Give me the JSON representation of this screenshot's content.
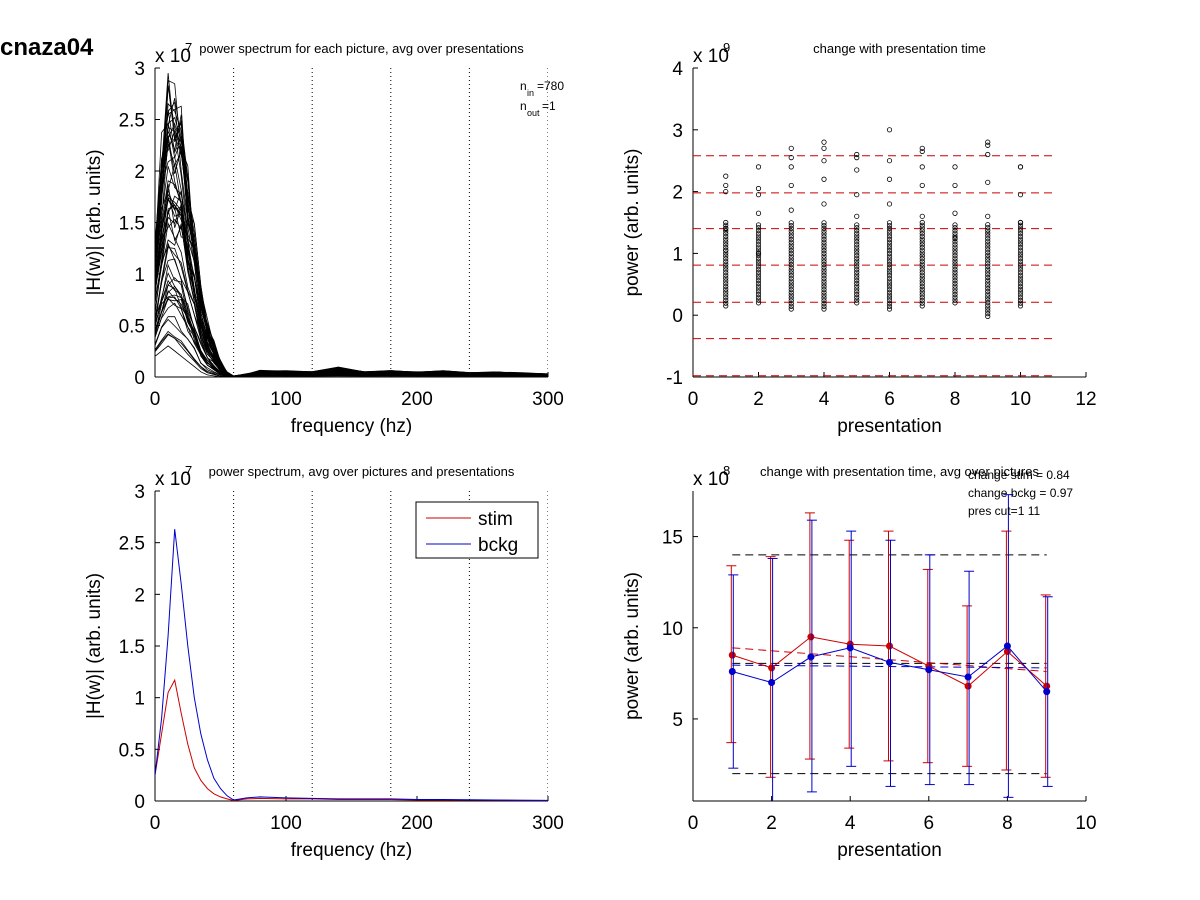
{
  "figure_title": "cnaza04",
  "chart_data": [
    {
      "type": "line",
      "title": "power spectrum for each picture, avg over presentations",
      "xlabel": "frequency (hz)",
      "ylabel": "|H(w)| (arb. units)",
      "xlim": [
        0,
        300
      ],
      "ylim": [
        0,
        3
      ],
      "xticks": [
        "0",
        "100",
        "200",
        "300"
      ],
      "yticks": [
        "0",
        "0.5",
        "1",
        "1.5",
        "2",
        "2.5",
        "3"
      ],
      "y_exponent": "x 10",
      "y_exponent_power": "7",
      "vlines": [
        60,
        120,
        180,
        240,
        300
      ],
      "annotations": [
        {
          "base": "n",
          "sub": "in",
          "rest": "=780"
        },
        {
          "base": "n",
          "sub": "out",
          "rest": "=1"
        }
      ],
      "envelope": {
        "x": [
          0,
          5,
          10,
          15,
          20,
          25,
          30,
          35,
          40,
          45,
          50,
          55,
          60,
          70,
          80,
          100,
          120,
          140,
          160,
          180,
          200,
          220,
          240,
          260,
          280,
          300
        ],
        "upper": [
          1.3,
          2.2,
          2.85,
          2.8,
          2.6,
          2.0,
          1.5,
          0.9,
          0.55,
          0.35,
          0.15,
          0.05,
          0.01,
          0.03,
          0.06,
          0.06,
          0.05,
          0.09,
          0.05,
          0.06,
          0.05,
          0.06,
          0.04,
          0.05,
          0.04,
          0.03
        ],
        "lower": [
          0.2,
          0.25,
          0.3,
          0.25,
          0.2,
          0.15,
          0.1,
          0.05,
          0.02,
          0.01,
          0.0,
          0.0,
          0.0,
          0.01,
          0.01,
          0.01,
          0.01,
          0.01,
          0.01,
          0.01,
          0.01,
          0.01,
          0.01,
          0.01,
          0.01,
          0.01
        ]
      },
      "n_traces": 60,
      "line_color": "#000000"
    },
    {
      "type": "scatter",
      "title": "change with presentation time",
      "xlabel": "presentation",
      "ylabel": "power (arb. units)",
      "xlim": [
        0,
        12
      ],
      "ylim": [
        -1,
        4
      ],
      "xticks": [
        "0",
        "2",
        "4",
        "6",
        "8",
        "10",
        "12"
      ],
      "yticks": [
        "-1",
        "0",
        "1",
        "2",
        "3",
        "4"
      ],
      "y_exponent": "x 10",
      "y_exponent_power": "9",
      "hlines_red": [
        2.58,
        1.98,
        1.4,
        0.81,
        0.21,
        -0.38,
        -0.98
      ],
      "hline_xrange": [
        0,
        11
      ],
      "points": [
        {
          "x": 1,
          "ymin": 0.15,
          "ymax": 2.25,
          "outliers": [
            1.05,
            1.4,
            2.0,
            2.1
          ]
        },
        {
          "x": 2,
          "ymin": 0.2,
          "ymax": 2.4,
          "outliers": [
            1.0,
            1.65,
            1.95,
            2.05
          ]
        },
        {
          "x": 3,
          "ymin": 0.1,
          "ymax": 2.7,
          "outliers": [
            1.7,
            2.1,
            2.4,
            2.55
          ]
        },
        {
          "x": 4,
          "ymin": 0.1,
          "ymax": 2.8,
          "outliers": [
            1.8,
            2.2,
            2.5,
            2.7
          ]
        },
        {
          "x": 5,
          "ymin": 0.2,
          "ymax": 2.6,
          "outliers": [
            1.6,
            1.95,
            2.35,
            2.55
          ]
        },
        {
          "x": 6,
          "ymin": 0.1,
          "ymax": 3.0,
          "outliers": [
            1.8,
            2.2,
            2.5
          ]
        },
        {
          "x": 7,
          "ymin": 0.15,
          "ymax": 2.7,
          "outliers": [
            1.6,
            2.1,
            2.4,
            2.65
          ]
        },
        {
          "x": 8,
          "ymin": 0.2,
          "ymax": 2.4,
          "outliers": [
            1.25,
            1.65,
            2.1
          ]
        },
        {
          "x": 9,
          "ymin": -0.02,
          "ymax": 2.8,
          "outliers": [
            1.6,
            2.15,
            2.6,
            2.75
          ]
        },
        {
          "x": 10,
          "ymin": 0.15,
          "ymax": 2.4,
          "outliers": [
            1.5,
            1.95,
            2.4
          ]
        }
      ]
    },
    {
      "type": "line",
      "title": "power spectrum, avg over pictures and presentations",
      "xlabel": "frequency (hz)",
      "ylabel": "|H(w)| (arb. units)",
      "xlim": [
        0,
        300
      ],
      "ylim": [
        0,
        3
      ],
      "xticks": [
        "0",
        "100",
        "200",
        "300"
      ],
      "yticks": [
        "0",
        "0.5",
        "1",
        "1.5",
        "2",
        "2.5",
        "3"
      ],
      "y_exponent": "x 10",
      "y_exponent_power": "7",
      "vlines": [
        60,
        120,
        180,
        240,
        300
      ],
      "legend": "top-right",
      "series": [
        {
          "name": "stim",
          "color": "#cc0000",
          "x": [
            0,
            5,
            10,
            15,
            20,
            25,
            30,
            35,
            40,
            45,
            50,
            55,
            60,
            70,
            80,
            100,
            120,
            140,
            160,
            180,
            200,
            220,
            240,
            260,
            280,
            300
          ],
          "y": [
            0.25,
            0.65,
            1.05,
            1.17,
            0.85,
            0.55,
            0.32,
            0.2,
            0.12,
            0.07,
            0.04,
            0.02,
            0.005,
            0.02,
            0.025,
            0.02,
            0.02,
            0.015,
            0.015,
            0.015,
            0.01,
            0.01,
            0.01,
            0.008,
            0.006,
            0.005
          ]
        },
        {
          "name": "bckg",
          "color": "#0000cc",
          "x": [
            0,
            5,
            10,
            15,
            20,
            25,
            30,
            35,
            40,
            45,
            50,
            55,
            60,
            70,
            80,
            100,
            120,
            140,
            160,
            180,
            200,
            220,
            240,
            260,
            280,
            300
          ],
          "y": [
            0.25,
            0.8,
            1.6,
            2.63,
            2.1,
            1.5,
            1.0,
            0.65,
            0.4,
            0.22,
            0.12,
            0.05,
            0.01,
            0.03,
            0.04,
            0.03,
            0.025,
            0.02,
            0.02,
            0.02,
            0.015,
            0.015,
            0.012,
            0.01,
            0.008,
            0.006
          ]
        }
      ]
    },
    {
      "type": "line",
      "title": "change with presentation time, avg over pictures",
      "xlabel": "presentation",
      "ylabel": "power (arb. units)",
      "xlim": [
        0,
        10
      ],
      "ylim": [
        0.5,
        17.5
      ],
      "xticks": [
        "0",
        "2",
        "4",
        "6",
        "8",
        "10"
      ],
      "ytick_values": [
        5,
        10,
        15
      ],
      "yticks": [
        "5",
        "10",
        "15"
      ],
      "y_exponent": "x 10",
      "y_exponent_power": "8",
      "annotations": [
        "change stim = 0.84",
        "change bckg = 0.97",
        "pres cut=1 11"
      ],
      "hlines_black": [
        14.0,
        8.05,
        2.0
      ],
      "hline_xrange": [
        1,
        9
      ],
      "fit_stim": [
        [
          1,
          8.9
        ],
        [
          9,
          7.6
        ]
      ],
      "fit_bckg": [
        [
          1,
          7.95
        ],
        [
          9,
          7.8
        ]
      ],
      "series": [
        {
          "name": "stim",
          "color": "#cc0000",
          "x": [
            1,
            2,
            3,
            4,
            5,
            6,
            7,
            8,
            9
          ],
          "y": [
            8.5,
            7.8,
            9.5,
            9.1,
            9.0,
            7.9,
            6.8,
            8.7,
            6.8
          ],
          "err_low": [
            3.7,
            1.8,
            2.8,
            3.4,
            2.7,
            2.6,
            2.4,
            2.2,
            1.8
          ],
          "err_high": [
            13.4,
            13.9,
            16.3,
            14.8,
            15.3,
            13.2,
            11.2,
            15.3,
            11.8
          ]
        },
        {
          "name": "bckg",
          "color": "#0000cc",
          "x": [
            1,
            2,
            3,
            4,
            5,
            6,
            7,
            8,
            9
          ],
          "y": [
            7.6,
            7.0,
            8.4,
            8.9,
            8.1,
            7.7,
            7.3,
            9.0,
            6.5
          ],
          "err_low": [
            2.3,
            0.1,
            1.0,
            2.4,
            1.3,
            1.4,
            1.4,
            0.7,
            1.3
          ],
          "err_high": [
            12.9,
            13.8,
            15.9,
            15.3,
            14.8,
            14.0,
            13.1,
            17.3,
            11.7
          ]
        }
      ]
    }
  ]
}
